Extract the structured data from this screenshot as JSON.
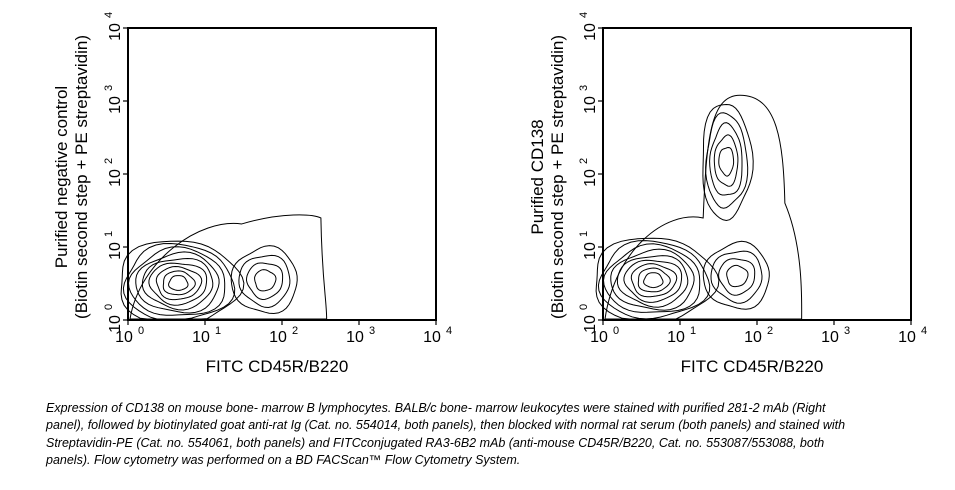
{
  "chart_data": [
    {
      "type": "contour",
      "panel": "left",
      "xlabel": "FITC CD45R/B220",
      "ylabel_line1": "Purified negative control",
      "ylabel_line2": "(Biotin second step + PE streptavidin)",
      "x_scale": "log",
      "y_scale": "log",
      "xlim": [
        1,
        10000
      ],
      "ylim": [
        1,
        10000
      ],
      "x_ticks": [
        {
          "base": "10",
          "exp": "0"
        },
        {
          "base": "10",
          "exp": "1"
        },
        {
          "base": "10",
          "exp": "2"
        },
        {
          "base": "10",
          "exp": "3"
        },
        {
          "base": "10",
          "exp": "4"
        }
      ],
      "y_ticks": [
        {
          "base": "10",
          "exp": "0"
        },
        {
          "base": "10",
          "exp": "1"
        },
        {
          "base": "10",
          "exp": "2"
        },
        {
          "base": "10",
          "exp": "3"
        },
        {
          "base": "10",
          "exp": "4"
        }
      ],
      "grid": false,
      "populations": [
        {
          "center_x": 4.5,
          "center_y": 3.2,
          "levels": 9
        },
        {
          "center_x": 60,
          "center_y": 3.5,
          "levels": 4
        }
      ],
      "outer_envelope_y_max": 25
    },
    {
      "type": "contour",
      "panel": "right",
      "xlabel": "FITC CD45R/B220",
      "ylabel_line1": "Purified CD138",
      "ylabel_line2": "(Biotin second step + PE streptavidin)",
      "x_scale": "log",
      "y_scale": "log",
      "xlim": [
        1,
        10000
      ],
      "ylim": [
        1,
        10000
      ],
      "x_ticks": [
        {
          "base": "10",
          "exp": "0"
        },
        {
          "base": "10",
          "exp": "1"
        },
        {
          "base": "10",
          "exp": "2"
        },
        {
          "base": "10",
          "exp": "3"
        },
        {
          "base": "10",
          "exp": "4"
        }
      ],
      "y_ticks": [
        {
          "base": "10",
          "exp": "0"
        },
        {
          "base": "10",
          "exp": "1"
        },
        {
          "base": "10",
          "exp": "2"
        },
        {
          "base": "10",
          "exp": "3"
        },
        {
          "base": "10",
          "exp": "4"
        }
      ],
      "grid": false,
      "populations": [
        {
          "center_x": 4.5,
          "center_y": 3.5,
          "levels": 9
        },
        {
          "center_x": 55,
          "center_y": 4,
          "levels": 4
        },
        {
          "center_x": 40,
          "center_y": 150,
          "levels": 5,
          "note": "CD138+ tail"
        }
      ],
      "outer_envelope_y_max": 1200
    }
  ],
  "caption": "Expression of CD138 on mouse bone- marrow B lymphocytes. BALB/c bone- marrow leukocytes were stained with purified 281-2 mAb (Right panel), followed by biotinylated goat anti-rat Ig (Cat. no. 554014, both panels), then blocked with normal rat serum (both panels) and stained with Streptavidin-PE (Cat. no. 554061, both panels) and FITCconjugated RA3-6B2 mAb (anti-mouse CD45R/B220, Cat. no. 553087/553088, both panels). Flow cytometry was performed on a BD FACScan™ Flow Cytometry System.",
  "colors": {
    "ink": "#000000",
    "background": "#ffffff"
  }
}
